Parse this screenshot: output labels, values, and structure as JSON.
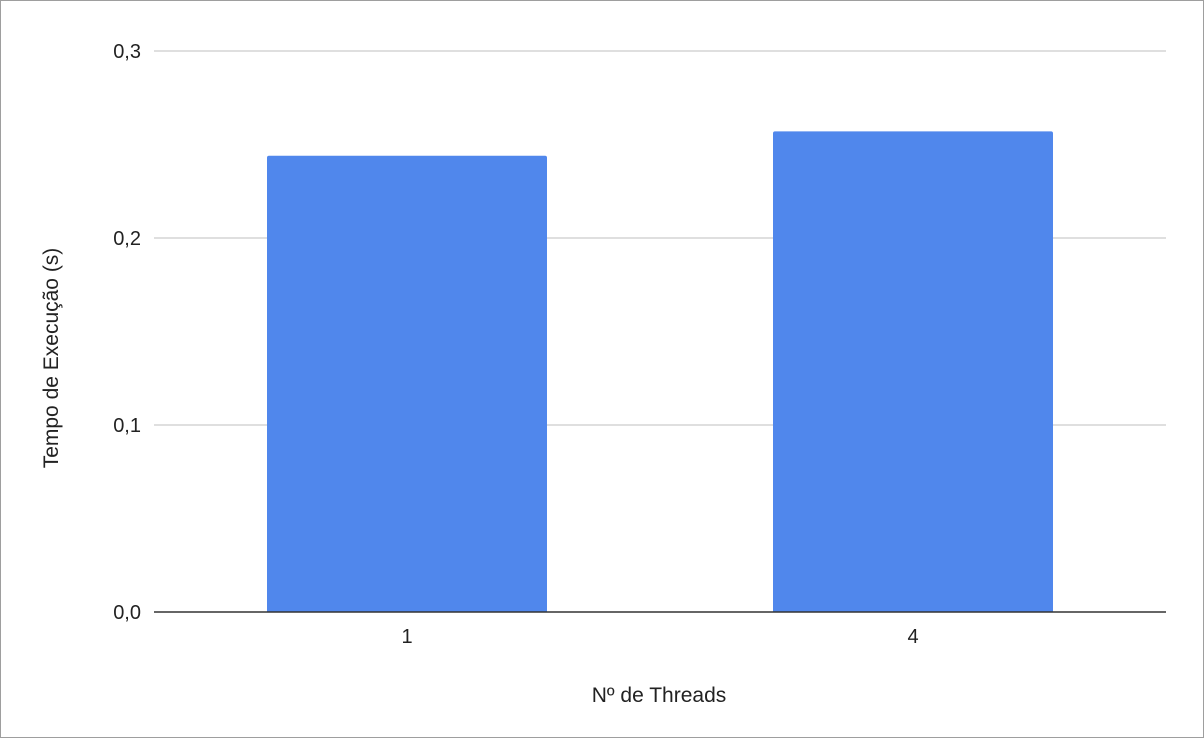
{
  "chart_data": {
    "type": "bar",
    "title": "",
    "xlabel": "Nº de Threads",
    "ylabel": "Tempo de Execução (s)",
    "categories": [
      "1",
      "4"
    ],
    "series": [
      {
        "values": [
          0.244,
          0.257
        ]
      }
    ],
    "ylim": [
      0,
      0.3
    ],
    "yticks": [
      0,
      0.1,
      0.2,
      0.3
    ],
    "ytick_labels": [
      "0,0",
      "0,1",
      "0,2",
      "0,3"
    ],
    "grid": true,
    "legend": "none",
    "colors": {
      "bar": "#5087EC",
      "grid": "#cccccc",
      "axis": "#333333",
      "text": "#222222"
    }
  }
}
